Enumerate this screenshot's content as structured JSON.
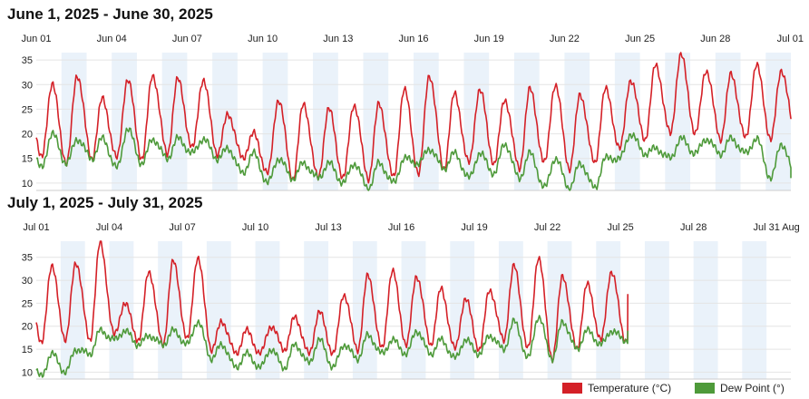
{
  "colors": {
    "temperature": "#d42027",
    "dew_point": "#4e9a3a",
    "band": "#eaf2fa",
    "grid": "#e4e4e4"
  },
  "legend": {
    "temperature": "Temperature (°C)",
    "dew_point": "Dew Point (°)"
  },
  "chart_data": [
    {
      "type": "line",
      "title": "June 1, 2025 - June 30, 2025",
      "x_tick_labels": [
        "Jun 01",
        "Jun 04",
        "Jun 07",
        "Jun 10",
        "Jun 13",
        "Jun 16",
        "Jun 19",
        "Jun 22",
        "Jun 25",
        "Jun 28",
        "Jul 01"
      ],
      "x_tick_days": [
        0,
        3,
        6,
        9,
        12,
        15,
        18,
        21,
        24,
        27,
        30
      ],
      "x_range_days": [
        0,
        30
      ],
      "y_ticks": [
        10,
        15,
        20,
        25,
        30,
        35
      ],
      "ylim": [
        8.5,
        36.5
      ],
      "series": [
        {
          "name": "Temperature (°C)",
          "daily_min": [
            15,
            14,
            15,
            15,
            15,
            16,
            17,
            16,
            15,
            12,
            11,
            11,
            11,
            11,
            11,
            12,
            13,
            14,
            14,
            13,
            14,
            13,
            14,
            17,
            19,
            20,
            20,
            19,
            19,
            19
          ],
          "daily_max": [
            30,
            32,
            27,
            31,
            32,
            31,
            31,
            24,
            20,
            27,
            26,
            25,
            26,
            26,
            29,
            32,
            28,
            29,
            27,
            29,
            30,
            28,
            29,
            31,
            34,
            36,
            33,
            32,
            34,
            33
          ],
          "last_value": 23
        },
        {
          "name": "Dew Point (°)",
          "daily_min": [
            13,
            14,
            15,
            13,
            14,
            15,
            16,
            15,
            12,
            10,
            11,
            11,
            10,
            9,
            10,
            14,
            13,
            11,
            12,
            11,
            9,
            9,
            9,
            15,
            16,
            15,
            16,
            16,
            16,
            11
          ],
          "daily_max": [
            20,
            19,
            19,
            21,
            19,
            19,
            19,
            17,
            16,
            15,
            14,
            14,
            14,
            14,
            15,
            17,
            16,
            16,
            18,
            16,
            15,
            14,
            15,
            20,
            17,
            19,
            19,
            19,
            19,
            18
          ],
          "last_value": 11
        }
      ]
    },
    {
      "type": "line",
      "title": "July 1, 2025 - July 31, 2025",
      "x_tick_labels": [
        "Jul 01",
        "Jul 04",
        "Jul 07",
        "Jul 10",
        "Jul 13",
        "Jul 16",
        "Jul 19",
        "Jul 22",
        "Jul 25",
        "Jul 28",
        "Jul 31",
        "Aug"
      ],
      "x_tick_days": [
        0,
        3,
        6,
        9,
        12,
        15,
        18,
        21,
        24,
        27,
        30,
        31
      ],
      "x_range_days": [
        0,
        31
      ],
      "data_end_day": 24.3,
      "y_ticks": [
        10,
        15,
        20,
        25,
        30,
        35
      ],
      "ylim": [
        8.5,
        38.5
      ],
      "series": [
        {
          "name": "Temperature (°C)",
          "daily_min": [
            16,
            17,
            17,
            18,
            17,
            16,
            17,
            15,
            14,
            14,
            15,
            14,
            14,
            15,
            15,
            16,
            16,
            15,
            15,
            17,
            15,
            13,
            15,
            17,
            17
          ],
          "daily_max": [
            33,
            34,
            38,
            25,
            32,
            34,
            35,
            21,
            19,
            20,
            22,
            23,
            27,
            31,
            32,
            31,
            28,
            26,
            28,
            33,
            35,
            31,
            29,
            32,
            26
          ],
          "last_value": 27
        },
        {
          "name": "Dew Point (°)",
          "daily_min": [
            9,
            10,
            14,
            17,
            16,
            16,
            16,
            13,
            11,
            11,
            11,
            12,
            11,
            13,
            14,
            14,
            14,
            13,
            14,
            15,
            13,
            13,
            15,
            16,
            17
          ],
          "daily_max": [
            14,
            15,
            19,
            19,
            18,
            19,
            21,
            16,
            14,
            15,
            16,
            17,
            16,
            18,
            17,
            19,
            17,
            17,
            18,
            21,
            22,
            21,
            19,
            19,
            18
          ],
          "last_value": 19
        }
      ]
    }
  ]
}
